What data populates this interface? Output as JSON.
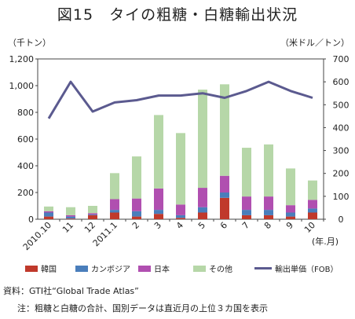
{
  "title": "図15　タイの粗糖・白糖輸出状況",
  "left_unit": "（千トン）",
  "right_unit": "（米ドル／トン）",
  "source": "資料：GTI社“Global Trade Atlas”",
  "note": "注：粗糖と白糖の合計、国別データは直近月の上位３カ国を表示",
  "chart_data": {
    "type": "bar",
    "stacked": true,
    "categories": [
      "2010.10",
      "11",
      "12",
      "2011.1",
      "2",
      "3",
      "4",
      "5",
      "6",
      "7",
      "8",
      "9",
      "10"
    ],
    "x_unit": "(年.月)",
    "ylim": [
      0,
      1200
    ],
    "yticks": [
      0,
      200,
      400,
      600,
      800,
      1000,
      1200
    ],
    "ytick_labels": [
      "0",
      "200",
      "400",
      "600",
      "800",
      "1,000",
      "1,200"
    ],
    "y2lim": [
      0,
      700
    ],
    "y2ticks": [
      0,
      100,
      200,
      300,
      400,
      500,
      600,
      700
    ],
    "grid": false,
    "series": [
      {
        "name": "韓国",
        "color": "#c0392b",
        "values": [
          20,
          5,
          30,
          50,
          20,
          40,
          10,
          50,
          160,
          30,
          30,
          20,
          50
        ]
      },
      {
        "name": "カンボジア",
        "color": "#4a7ebb",
        "values": [
          30,
          15,
          5,
          20,
          40,
          30,
          20,
          40,
          40,
          40,
          40,
          30,
          30
        ]
      },
      {
        "name": "日本",
        "color": "#b04fb0",
        "values": [
          10,
          10,
          10,
          80,
          95,
          160,
          80,
          145,
          125,
          100,
          100,
          55,
          65
        ]
      },
      {
        "name": "その他",
        "color": "#b6d7a8",
        "values": [
          35,
          60,
          55,
          195,
          315,
          550,
          535,
          735,
          685,
          365,
          390,
          275,
          145
        ]
      }
    ],
    "line": {
      "name": "輸出単価（FOB）",
      "color": "#5b5a8f",
      "axis": "right",
      "values": [
        440,
        600,
        470,
        510,
        520,
        540,
        540,
        550,
        530,
        560,
        600,
        560,
        530
      ]
    }
  }
}
